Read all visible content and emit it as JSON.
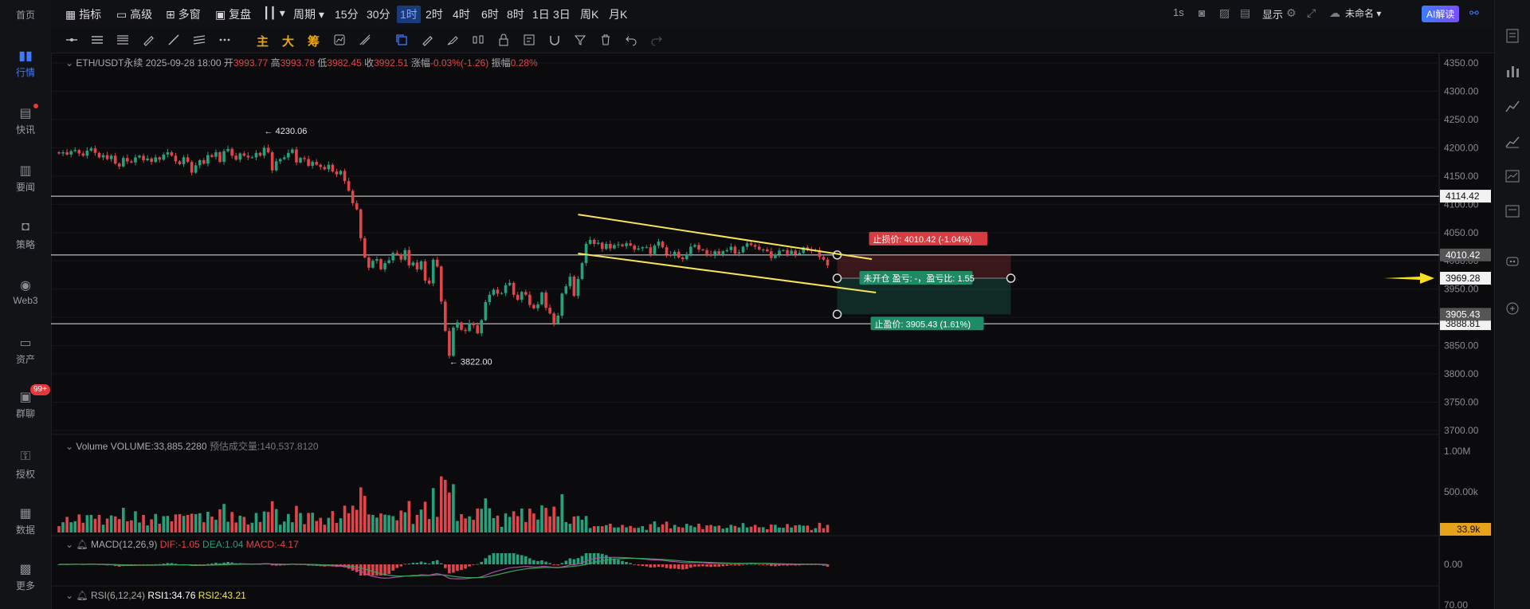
{
  "nav": [
    {
      "label": "首页",
      "icon": "home-icon"
    },
    {
      "label": "行情",
      "icon": "chart-bars-icon",
      "active": true
    },
    {
      "label": "快讯",
      "icon": "news-flash-icon",
      "dot": true
    },
    {
      "label": "要闻",
      "icon": "document-icon"
    },
    {
      "label": "策略",
      "icon": "robot-icon"
    },
    {
      "label": "Web3",
      "icon": "web3-icon"
    },
    {
      "label": "资产",
      "icon": "wallet-icon"
    },
    {
      "label": "群聊",
      "icon": "chat-icon",
      "badge": "99+"
    },
    {
      "label": "授权",
      "icon": "key-icon"
    },
    {
      "label": "数据",
      "icon": "data-icon"
    },
    {
      "label": "更多",
      "icon": "grid-icon"
    }
  ],
  "toolbar": {
    "indicators": "指标",
    "advanced": "高级",
    "multi_window": "多窗",
    "replay": "复盘",
    "period_menu": "周期",
    "intervals": [
      "15分",
      "30分",
      "1时",
      "2时",
      "4时",
      "6时",
      "8时",
      "1日",
      "3日",
      "周K",
      "月K"
    ],
    "active_interval": "1时",
    "speed": "1s",
    "display": "显示",
    "unnamed": "未命名",
    "ai": "AI解读"
  },
  "drawtools": {
    "main": "主",
    "big": "大",
    "chip": "筹"
  },
  "header": {
    "symbol": "ETH/USDT永续",
    "datetime": "2025-09-28 18:00",
    "open_label": "开",
    "open": "3993.77",
    "high_label": "高",
    "high": "3993.78",
    "low_label": "低",
    "low": "3982.45",
    "close_label": "收",
    "close": "3992.51",
    "change_label": "涨幅",
    "change": "-0.03%(-1.26)",
    "amp_label": "振幅",
    "amp": "0.28%"
  },
  "volume_header": {
    "title": "Volume",
    "value": "VOLUME:33,885.2280",
    "est": "预估成交量:140,537.8120"
  },
  "macd_header": {
    "title": "MACD(12,26,9)",
    "dif": "DIF:-1.05",
    "dea": "DEA:1.04",
    "macd": "MACD:-4.17"
  },
  "rsi_header": {
    "title": "RSI(6,12,24)",
    "rsi1": "RSI1:34.76",
    "rsi2": "RSI2:43.21"
  },
  "colors": {
    "up": "#26a17b",
    "down": "#e0454b",
    "trend": "#f5e35a",
    "bg": "#0b0b0d",
    "accent": "#3d7bff",
    "volume_tag": "#e5a21a"
  },
  "chart_data": {
    "type": "candlestick",
    "price_axis": {
      "min": 3700,
      "max": 4350,
      "ticks": [
        "4350.00",
        "4300.00",
        "4250.00",
        "4200.00",
        "4150.00",
        "4100.00",
        "4050.00",
        "4000.00",
        "3950.00",
        "3900.00",
        "3850.00",
        "3800.00",
        "3750.00",
        "3700.00"
      ]
    },
    "price_labels": {
      "current": "3969.28",
      "h1": "4114.42",
      "h2": "4010.42",
      "h3": "3905.43",
      "h4": "3888.81"
    },
    "horizontal_lines": [
      4114.42,
      4010.42,
      3888.81
    ],
    "markers": {
      "max": "4230.06",
      "max_value": 4230.06,
      "min": "3822.00",
      "min_value": 3822.0
    },
    "closes": [
      4190,
      4192,
      4188,
      4194,
      4196,
      4190,
      4186,
      4195,
      4199,
      4191,
      4183,
      4187,
      4180,
      4186,
      4172,
      4167,
      4182,
      4176,
      4174,
      4183,
      4186,
      4178,
      4181,
      4175,
      4183,
      4179,
      4188,
      4192,
      4186,
      4176,
      4171,
      4183,
      4175,
      4156,
      4169,
      4178,
      4172,
      4187,
      4184,
      4192,
      4175,
      4194,
      4198,
      4186,
      4179,
      4190,
      4186,
      4183,
      4183,
      4191,
      4186,
      4200,
      4192,
      4160,
      4176,
      4180,
      4183,
      4191,
      4197,
      4174,
      4182,
      4180,
      4168,
      4175,
      4170,
      4166,
      4162,
      4170,
      4158,
      4153,
      4159,
      4141,
      4124,
      4102,
      4091,
      4040,
      4006,
      3988,
      4000,
      4003,
      3985,
      3996,
      4001,
      4014,
      4012,
      4002,
      4019,
      3992,
      3997,
      3985,
      3999,
      3965,
      3960,
      4002,
      3990,
      3928,
      3876,
      3832,
      3882,
      3891,
      3878,
      3876,
      3890,
      3886,
      3872,
      3895,
      3927,
      3940,
      3949,
      3942,
      3943,
      3957,
      3961,
      3940,
      3931,
      3945,
      3940,
      3922,
      3916,
      3923,
      3944,
      3917,
      3907,
      3889,
      3903,
      3942,
      3955,
      3972,
      3938,
      3968,
      3996,
      4030,
      4037,
      4030,
      4032,
      4021,
      4030,
      4022,
      4028,
      4029,
      4026,
      4031,
      4027,
      4020,
      4022,
      4024,
      4024,
      4012,
      4027,
      4034,
      4024,
      4011,
      4009,
      4016,
      4006,
      4003,
      4012,
      4025,
      4028,
      4020,
      4019,
      4012,
      4009,
      4017,
      4012,
      4017,
      4019,
      4025,
      4013,
      4015,
      4025,
      4031,
      4028,
      4025,
      4020,
      4020,
      4017,
      4005,
      4011,
      4018,
      4019,
      4012,
      4018,
      4011,
      4014,
      4024,
      4019,
      4018,
      4019,
      4007,
      4002,
      3992
    ],
    "volume_axis": {
      "ticks": [
        "1.00M",
        "500.00k"
      ],
      "current": "33.9k"
    },
    "macd_axis": {
      "ticks": [
        "0.00"
      ]
    },
    "rsi_axis": {
      "ticks": [
        "70.00"
      ]
    },
    "trendlines": [
      {
        "from_index": 129,
        "from": 4082,
        "to_index": 202,
        "to": 4003
      },
      {
        "from_index": 129,
        "from": 4013,
        "to_index": 203,
        "to": 3944
      }
    ],
    "position": {
      "stop_loss": "止损价: 4010.42 (-1.04%)",
      "stop_loss_value": 4010.42,
      "take_profit": "止盈价: 3905.43 (1.61%)",
      "take_profit_value": 3905.43,
      "status": "未开仓  盈亏: -，盈亏比: 1.55",
      "entry_value": 3969.28
    }
  }
}
